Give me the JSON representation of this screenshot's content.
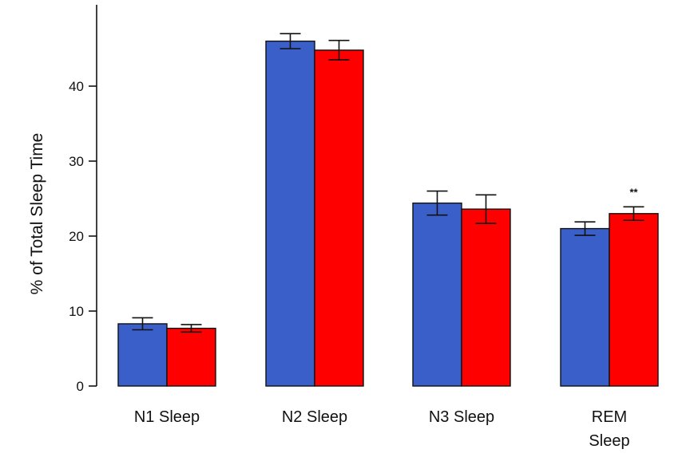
{
  "chart_data": {
    "type": "bar",
    "title": "",
    "xlabel": "",
    "ylabel": "% of Total Sleep Time",
    "ylim": [
      0,
      50
    ],
    "yticks": [
      0,
      10,
      20,
      30,
      40
    ],
    "grid": false,
    "legend": "none",
    "categories": [
      [
        "N1 Sleep"
      ],
      [
        "N2 Sleep"
      ],
      [
        "N3 Sleep"
      ],
      [
        "REM",
        "Sleep"
      ]
    ],
    "series": [
      {
        "color": "#3a5fc8",
        "values": [
          8.3,
          46.0,
          24.4,
          21.0
        ],
        "error": [
          0.8,
          1.0,
          1.6,
          0.9
        ]
      },
      {
        "color": "#ff0000",
        "values": [
          7.7,
          44.8,
          23.6,
          23.0
        ],
        "error": [
          0.5,
          1.3,
          1.9,
          0.9
        ]
      }
    ],
    "annotations": [
      {
        "category_index": 3,
        "series_index": 1,
        "text": "**"
      }
    ]
  }
}
